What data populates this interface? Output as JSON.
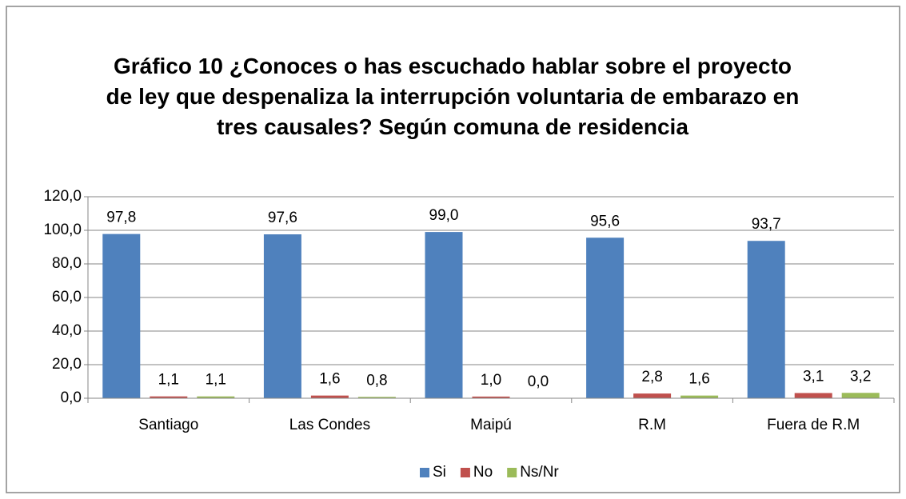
{
  "chart_data": {
    "type": "bar",
    "title": "Gráfico 10 ¿Conoces o has escuchado hablar sobre el proyecto de ley que despenaliza la interrupción voluntaria de embarazo en tres causales? Según comuna de residencia",
    "categories": [
      "Santiago",
      "Las Condes",
      "Maipú",
      "R.M",
      "Fuera de R.M"
    ],
    "series": [
      {
        "name": "Si",
        "color": "#4f81bd",
        "values": [
          97.8,
          97.6,
          99.0,
          95.6,
          93.7
        ],
        "value_labels": [
          "97,8",
          "97,6",
          "99,0",
          "95,6",
          "93,7"
        ]
      },
      {
        "name": "No",
        "color": "#c0504d",
        "values": [
          1.1,
          1.6,
          1.0,
          2.8,
          3.1
        ],
        "value_labels": [
          "1,1",
          "1,6",
          "1,0",
          "2,8",
          "3,1"
        ]
      },
      {
        "name": "Ns/Nr",
        "color": "#9bbb59",
        "values": [
          1.1,
          0.8,
          0.0,
          1.6,
          3.2
        ],
        "value_labels": [
          "1,1",
          "0,8",
          "0,0",
          "1,6",
          "3,2"
        ]
      }
    ],
    "ylim": [
      0,
      120
    ],
    "yticks": [
      {
        "value": 0,
        "label": "0,0"
      },
      {
        "value": 20,
        "label": "20,0"
      },
      {
        "value": 40,
        "label": "40,0"
      },
      {
        "value": 60,
        "label": "60,0"
      },
      {
        "value": 80,
        "label": "80,0"
      },
      {
        "value": 100,
        "label": "100,0"
      },
      {
        "value": 120,
        "label": "120,0"
      }
    ],
    "grid": true,
    "legend": "bottom"
  }
}
